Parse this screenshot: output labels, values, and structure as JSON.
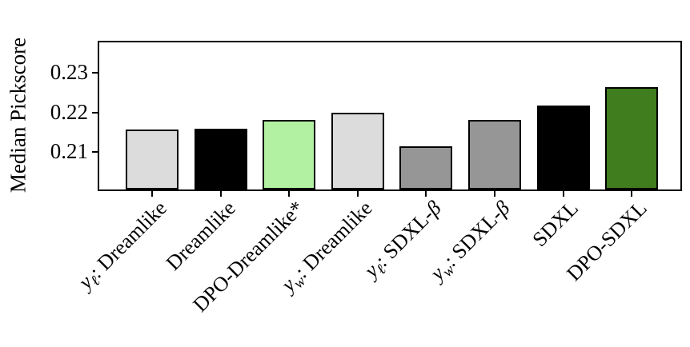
{
  "chart_data": {
    "type": "bar",
    "ylabel": "Median Pickscore",
    "categories": [
      "yℓ: Dreamlike",
      "Dreamlike",
      "DPO-Dreamlike*",
      "yw: Dreamlike",
      "yℓ: SDXL-β",
      "yw: SDXL-β",
      "SDXL",
      "DPO-SDXL"
    ],
    "categories_rich": [
      [
        {
          "t": "y",
          "i": true
        },
        {
          "t": "ℓ",
          "i": true,
          "s": true
        },
        {
          "t": ": Dreamlike"
        }
      ],
      [
        {
          "t": "Dreamlike"
        }
      ],
      [
        {
          "t": "DPO-Dreamlike*"
        }
      ],
      [
        {
          "t": "y",
          "i": true
        },
        {
          "t": "w",
          "i": true,
          "s": true
        },
        {
          "t": ": Dreamlike"
        }
      ],
      [
        {
          "t": "y",
          "i": true
        },
        {
          "t": "ℓ",
          "i": true,
          "s": true
        },
        {
          "t": ": SDXL-"
        },
        {
          "t": "β",
          "i": true
        }
      ],
      [
        {
          "t": "y",
          "i": true
        },
        {
          "t": "w",
          "i": true,
          "s": true
        },
        {
          "t": ": SDXL-"
        },
        {
          "t": "β",
          "i": true
        }
      ],
      [
        {
          "t": "SDXL"
        }
      ],
      [
        {
          "t": "DPO-SDXL"
        }
      ]
    ],
    "values": [
      0.2156,
      0.2158,
      0.2182,
      0.22,
      0.2114,
      0.2182,
      0.2218,
      0.2264
    ],
    "bar_colors": [
      "#dcdcdc",
      "#000000",
      "#b2f0a2",
      "#dcdcdc",
      "#969696",
      "#969696",
      "#000000",
      "#3f7d1f"
    ],
    "bar_edge_color": "#000000",
    "ytick_labels": [
      "0.21",
      "0.22",
      "0.23"
    ],
    "ytick_values": [
      0.21,
      0.22,
      0.23
    ],
    "ylim": [
      0.2006,
      0.2376
    ],
    "xlabel": "",
    "title": "",
    "grid": false,
    "legend_position": "none"
  }
}
